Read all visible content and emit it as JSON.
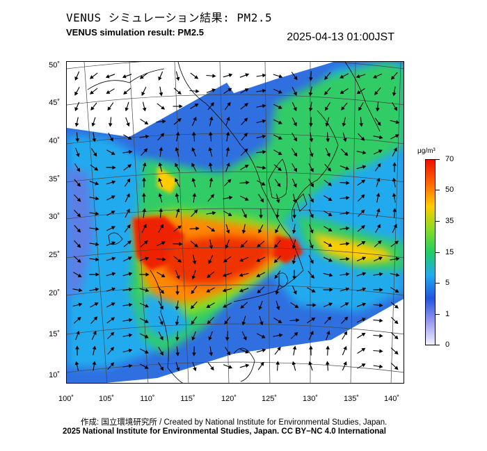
{
  "header": {
    "title_jp": "VENUS シミュレーション結果: PM2.5",
    "title_en": "VENUS simulation result: PM2.5",
    "timestamp": "2025-04-13 01:00JST"
  },
  "map": {
    "lat_labels": [
      "50˚",
      "45˚",
      "40˚",
      "35˚",
      "30˚",
      "25˚",
      "20˚",
      "15˚",
      "10˚"
    ],
    "lon_labels": [
      "100˚",
      "105˚",
      "110˚",
      "115˚",
      "120˚",
      "125˚",
      "130˚",
      "135˚",
      "140˚"
    ]
  },
  "colorbar": {
    "unit": "μg/m³",
    "ticks": [
      "70",
      "50",
      "35",
      "15",
      "5",
      "1",
      "0"
    ],
    "colors": [
      "#f0f0ff",
      "#9999ee",
      "#2255dd",
      "#22aaee",
      "#22cc66",
      "#88dd22",
      "#ffcc00",
      "#ff6600",
      "#ee1100"
    ]
  },
  "footer": {
    "credit": "作成: 国立環境研究所 / Created by National Institute for Environmental Studies, Japan.",
    "license": "2025 National Institute for Environmental Studies, Japan. CC BY−NC 4.0 International"
  }
}
